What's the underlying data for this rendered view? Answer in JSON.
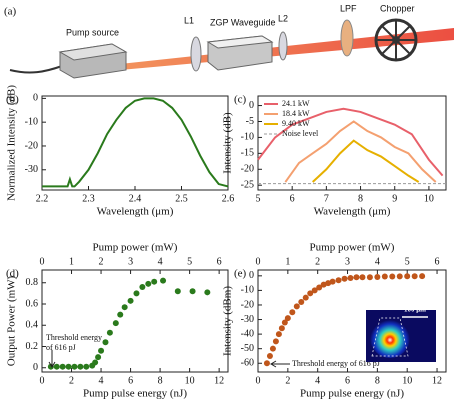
{
  "diagram": {
    "panel": "(a)",
    "labels": [
      "Pump source",
      "L1",
      "ZGP Waveguide",
      "L2",
      "LPF",
      "Chopper"
    ]
  },
  "chart_data": [
    {
      "type": "line",
      "panel": "(b)",
      "xlabel": "Wavelength (μm)",
      "ylabel": "Normalized Intensity (dB)",
      "color": "#2a7a1c",
      "x": [
        2.2,
        2.24,
        2.255,
        2.26,
        2.265,
        2.27,
        2.28,
        2.3,
        2.32,
        2.34,
        2.36,
        2.38,
        2.4,
        2.42,
        2.44,
        2.46,
        2.48,
        2.5,
        2.52,
        2.54,
        2.56,
        2.58,
        2.6
      ],
      "values": [
        -37,
        -37,
        -37,
        -34,
        -37,
        -37,
        -35,
        -30,
        -23,
        -15,
        -9,
        -4,
        -1,
        0,
        0,
        -1,
        -4,
        -9,
        -16,
        -24,
        -31,
        -36,
        -37
      ],
      "xlim": [
        2.2,
        2.6
      ],
      "xticks": [
        2.2,
        2.3,
        2.4,
        2.5,
        2.6
      ],
      "ylim": [
        -38.5,
        1
      ],
      "yticks": [
        0,
        -10,
        -20,
        -30
      ]
    },
    {
      "type": "line",
      "panel": "(c)",
      "xlabel": "Wavelength (μm)",
      "ylabel": "Intensity (dB)",
      "legend": "upper-left",
      "series": [
        {
          "name": "24.1 kW",
          "color": "#e8606a",
          "x": [
            5,
            5.5,
            6,
            6.5,
            7,
            7.5,
            8,
            8.5,
            9,
            9.5,
            10,
            10.4
          ],
          "values": [
            -17,
            -10,
            -6,
            -4,
            -2,
            -1,
            -2,
            -4,
            -6,
            -9,
            -17,
            -22
          ]
        },
        {
          "name": "18.4 kW",
          "color": "#f4a070",
          "x": [
            5.8,
            6.2,
            6.6,
            7,
            7.4,
            7.8,
            8.2,
            8.6,
            9,
            9.4,
            9.8,
            10.2
          ],
          "values": [
            -24,
            -18,
            -15,
            -12,
            -8,
            -5,
            -8,
            -10,
            -13,
            -15,
            -20,
            -24
          ]
        },
        {
          "name": "9.40 kW",
          "color": "#e6b000",
          "x": [
            6.6,
            7,
            7.4,
            7.8,
            8.2,
            8.6,
            9,
            9.4,
            9.7
          ],
          "values": [
            -24,
            -20,
            -15,
            -11,
            -14,
            -16,
            -19,
            -22,
            -24
          ]
        },
        {
          "name": "Noise level",
          "color": "#999999",
          "dashed": true,
          "x": [
            5,
            10.5
          ],
          "values": [
            -24.5,
            -24.5
          ]
        }
      ],
      "xlim": [
        5,
        10.5
      ],
      "xticks": [
        5,
        6,
        7,
        8,
        9,
        10
      ],
      "ylim": [
        -26.5,
        3
      ],
      "yticks": [
        0,
        -5,
        -10,
        -15,
        -20,
        -25
      ]
    },
    {
      "type": "scatter",
      "panel": "(d)",
      "xlabel": "Pump pulse energy (nJ)",
      "x2label": "Pump power (mW)",
      "ylabel": "Output Power (mW)",
      "color": "#2a7a1c",
      "annotation": [
        "Threshold energy",
        "of 616 pJ"
      ],
      "x": [
        0.6,
        1,
        1.4,
        1.8,
        2.2,
        2.6,
        3,
        3.4,
        3.6,
        3.8,
        4,
        4.3,
        4.6,
        5,
        5.3,
        5.6,
        6,
        6.4,
        6.8,
        7.2,
        7.6,
        8.2,
        9.2,
        10.2,
        11.2
      ],
      "values": [
        0.01,
        0.01,
        0.01,
        0.01,
        0.01,
        0.01,
        0.01,
        0.02,
        0.05,
        0.1,
        0.16,
        0.24,
        0.33,
        0.42,
        0.5,
        0.57,
        0.63,
        0.7,
        0.76,
        0.79,
        0.81,
        0.82,
        0.72,
        0.72,
        0.71
      ],
      "xlim": [
        0,
        12.6
      ],
      "xticks": [
        0,
        2,
        4,
        6,
        8,
        10,
        12
      ],
      "x2lim": [
        0,
        6.3
      ],
      "x2ticks": [
        0,
        1,
        2,
        3,
        4,
        5,
        6
      ],
      "ylim": [
        -0.04,
        0.92
      ],
      "yticks": [
        0,
        0.2,
        0.4,
        0.6,
        0.8
      ]
    },
    {
      "type": "scatter",
      "panel": "(e)",
      "xlabel": "Pump pulse energy (nJ)",
      "x2label": "Pump power (mW)",
      "ylabel": "Intensity (dBm)",
      "color": "#c0561b",
      "annotation": [
        "Threshold energy of 616 pJ"
      ],
      "inset_scale": "100 μm",
      "x": [
        0.6,
        0.8,
        1,
        1.2,
        1.4,
        1.6,
        1.8,
        2,
        2.3,
        2.6,
        2.9,
        3.2,
        3.5,
        3.8,
        4.1,
        4.4,
        4.7,
        5,
        5.4,
        5.8,
        6.2,
        6.6,
        7,
        7.5,
        8,
        8.5,
        9,
        9.5,
        10,
        10.5,
        11
      ],
      "values": [
        -60,
        -55,
        -50,
        -45,
        -40,
        -36,
        -32,
        -29,
        -25,
        -21,
        -18,
        -15,
        -12,
        -10,
        -8,
        -6,
        -5,
        -4,
        -3,
        -2,
        -1.5,
        -1,
        -1,
        -1,
        -0.8,
        -0.5,
        -0.5,
        -0.4,
        -0.3,
        -0.3,
        -0.2
      ],
      "xlim": [
        0,
        12.6
      ],
      "xticks": [
        0,
        2,
        4,
        6,
        8,
        10,
        12
      ],
      "x2lim": [
        0,
        6.3
      ],
      "x2ticks": [
        0,
        1,
        2,
        3,
        4,
        5,
        6
      ],
      "ylim": [
        -66,
        4
      ],
      "yticks": [
        0,
        -10,
        -20,
        -30,
        -40,
        -50,
        -60
      ]
    }
  ]
}
